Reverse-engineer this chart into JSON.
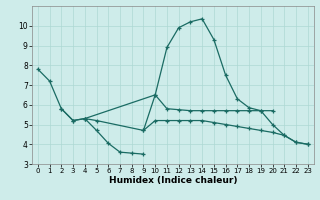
{
  "xlabel": "Humidex (Indice chaleur)",
  "background_color": "#ceecea",
  "grid_color": "#aed8d4",
  "line_color": "#1a6b63",
  "xlim": [
    -0.5,
    23.5
  ],
  "ylim": [
    3,
    11
  ],
  "yticks": [
    3,
    4,
    5,
    6,
    7,
    8,
    9,
    10
  ],
  "xticks": [
    0,
    1,
    2,
    3,
    4,
    5,
    6,
    7,
    8,
    9,
    10,
    11,
    12,
    13,
    14,
    15,
    16,
    17,
    18,
    19,
    20,
    21,
    22,
    23
  ],
  "series": [
    {
      "x": [
        9,
        10,
        11,
        12,
        13,
        14,
        15,
        16,
        17,
        18,
        19,
        20,
        21,
        22,
        23
      ],
      "y": [
        4.7,
        6.5,
        8.9,
        9.9,
        10.2,
        10.35,
        9.3,
        7.5,
        6.3,
        5.85,
        5.7,
        5.0,
        4.45,
        4.1,
        4.0
      ]
    },
    {
      "x": [
        0,
        1,
        2,
        3,
        4,
        10,
        11,
        12,
        13,
        14,
        15,
        16,
        17,
        18,
        19,
        20
      ],
      "y": [
        7.8,
        7.2,
        5.8,
        5.2,
        5.3,
        6.5,
        5.8,
        5.75,
        5.7,
        5.7,
        5.7,
        5.7,
        5.7,
        5.7,
        5.7,
        5.7
      ]
    },
    {
      "x": [
        2,
        3,
        4,
        5,
        6,
        7,
        8,
        9
      ],
      "y": [
        5.8,
        5.2,
        5.3,
        4.7,
        4.05,
        3.6,
        3.55,
        3.5
      ]
    },
    {
      "x": [
        4,
        5,
        9,
        10,
        11,
        12,
        13,
        14,
        15,
        16,
        17,
        18,
        19,
        20,
        21,
        22,
        23
      ],
      "y": [
        5.3,
        5.2,
        4.7,
        5.2,
        5.2,
        5.2,
        5.2,
        5.2,
        5.1,
        5.0,
        4.9,
        4.8,
        4.7,
        4.6,
        4.45,
        4.1,
        4.0
      ]
    }
  ]
}
